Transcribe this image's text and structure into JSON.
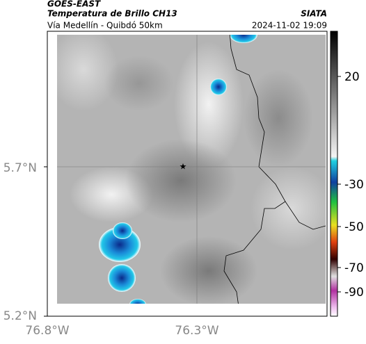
{
  "header": {
    "satellite": "GOES-EAST",
    "title": "Temperatura de Brillo CH13",
    "subtitle": "Vía Medellín - Quibdó 50km",
    "source": "SIATA",
    "datetime": "2024-11-02 19:09"
  },
  "axes": {
    "y_labels": [
      "5.7°N",
      "5.2°N"
    ],
    "x_labels": [
      "76.8°W",
      "76.3°W"
    ]
  },
  "colorbar": {
    "ticks": [
      20,
      -30,
      -50,
      -70,
      -90
    ]
  }
}
